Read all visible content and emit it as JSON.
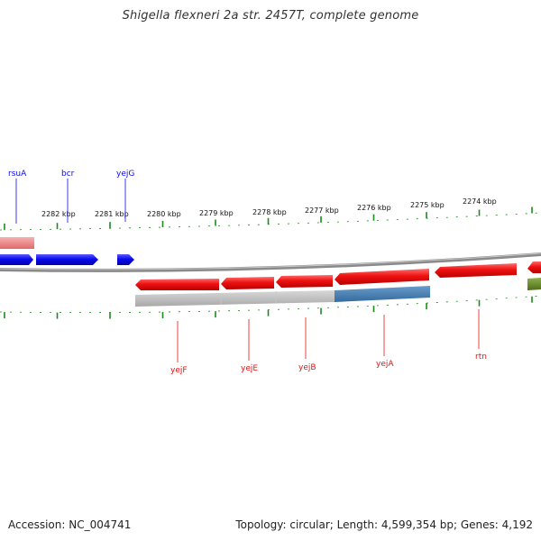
{
  "title": "Shigella flexneri 2a str. 2457T, complete genome",
  "footer": {
    "accession": "Accession: NC_004741",
    "summary": "Topology: circular; Length: 4,599,354 bp; Genes: 4,192"
  },
  "colors": {
    "forward_gene": "#0a0aee",
    "reverse_gene": "#ee1111",
    "pink_track": "#f28a8a",
    "olive_track": "#6b8e23",
    "backbone": "#8a8a8a",
    "ticks": "#1a8a1a",
    "grey_track": "#b8b8b8",
    "steel_track": "#4a80b4"
  },
  "scale_labels": [
    "2282 kbp",
    "2281 kbp",
    "2280 kbp",
    "2279 kbp",
    "2278 kbp",
    "2277 kbp",
    "2276 kbp",
    "2275 kbp",
    "2274 kbp"
  ],
  "forward_genes": [
    "rsuA",
    "bcr",
    "yejG"
  ],
  "reverse_genes": [
    "yejF",
    "yejE",
    "yejB",
    "yejA",
    "rtn"
  ]
}
